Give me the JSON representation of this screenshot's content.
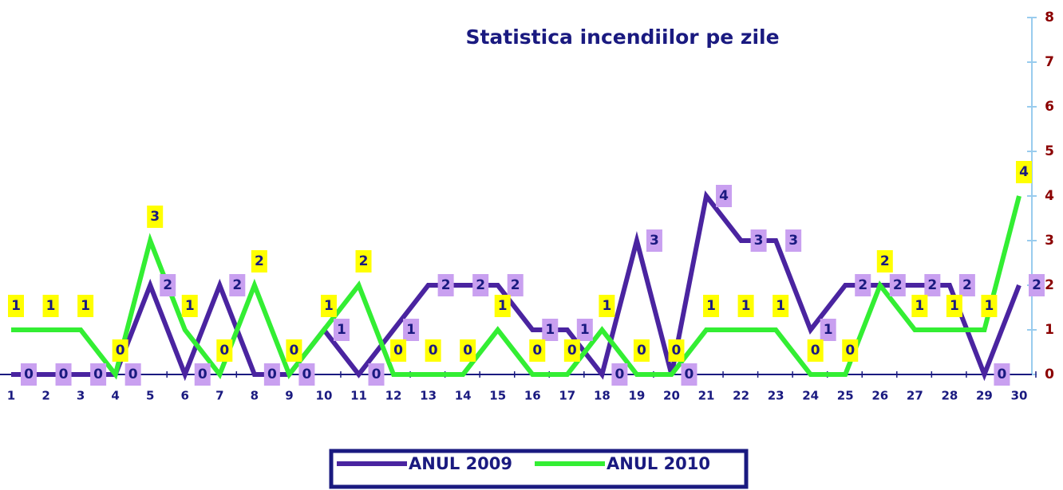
{
  "chart_data": {
    "type": "line",
    "title": "Statistica incendiilor pe zile",
    "categories": [
      "1",
      "2",
      "3",
      "4",
      "5",
      "6",
      "7",
      "8",
      "9",
      "10",
      "11",
      "12",
      "13",
      "14",
      "15",
      "16",
      "17",
      "18",
      "19",
      "20",
      "21",
      "22",
      "23",
      "24",
      "25",
      "26",
      "27",
      "28",
      "29",
      "30"
    ],
    "series": [
      {
        "name": "ANUL 2009",
        "color": "#4a24a0",
        "values": [
          0,
          0,
          0,
          0,
          2,
          0,
          2,
          0,
          0,
          1,
          0,
          1,
          2,
          2,
          2,
          1,
          1,
          0,
          3,
          0,
          4,
          3,
          3,
          1,
          2,
          2,
          2,
          2,
          0,
          2
        ]
      },
      {
        "name": "ANUL 2010",
        "color": "#33ee33",
        "values": [
          1,
          1,
          1,
          0,
          3,
          1,
          0,
          2,
          0,
          1,
          2,
          0,
          0,
          0,
          1,
          0,
          0,
          1,
          0,
          0,
          1,
          1,
          1,
          0,
          0,
          2,
          1,
          1,
          1,
          4
        ]
      }
    ],
    "ylim": [
      0,
      8
    ],
    "yticks": [
      0,
      1,
      2,
      3,
      4,
      5,
      6,
      7,
      8
    ],
    "legend": "bottom"
  }
}
